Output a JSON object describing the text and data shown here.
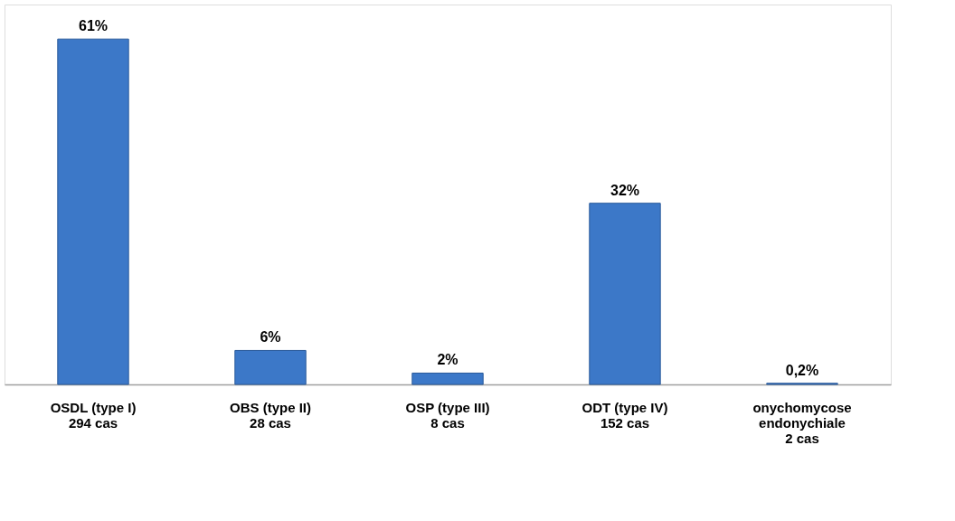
{
  "chart_data": {
    "type": "bar",
    "categories": [
      "OSDL  (type I)\n294 cas",
      "OBS  (type II)\n28 cas",
      "OSP  (type III)\n8 cas",
      "ODT  (type IV)\n152 cas",
      "onychomycose\nendonychiale\n2 cas"
    ],
    "values": [
      61,
      6,
      2,
      32,
      0.2
    ],
    "value_labels": [
      "61%",
      "6%",
      "2%",
      "32%",
      "0,2%"
    ],
    "color": "#3c78c8"
  }
}
